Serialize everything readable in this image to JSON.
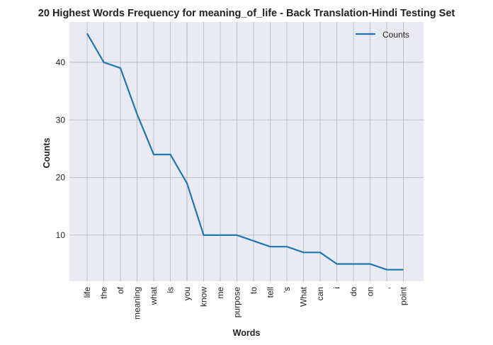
{
  "chart_data": {
    "type": "line",
    "title": "20 Highest Words Frequency for meaning_of_life - Back Translation-Hindi Testing Set",
    "xlabel": "Words",
    "ylabel": "Counts",
    "categories": [
      "life",
      "the",
      "of",
      "meaning",
      "what",
      "is",
      "you",
      "know",
      "me",
      "purpose",
      "to",
      "tell",
      "'s",
      "What",
      "can",
      "i",
      "do",
      "on",
      ",",
      "point"
    ],
    "series": [
      {
        "name": "Counts",
        "values": [
          45,
          40,
          39,
          31,
          24,
          24,
          19,
          10,
          10,
          10,
          9,
          8,
          8,
          7,
          7,
          5,
          5,
          5,
          4,
          4
        ]
      }
    ],
    "yticks": [
      10,
      20,
      30,
      40
    ],
    "ylim": [
      2.0,
      47.0
    ],
    "grid": true,
    "legend_position": "top-right",
    "colors": {
      "line": "#1f77b4",
      "background": "#eaeaf2",
      "grid": "#bfbfc6"
    }
  }
}
